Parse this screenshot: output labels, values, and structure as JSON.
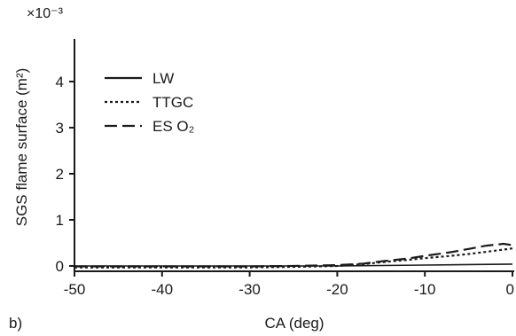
{
  "chart_data": {
    "type": "line",
    "panel_label": "b)",
    "xlabel": "CA (deg)",
    "ylabel": "SGS flame surface (m²)",
    "y_multiplier_label": "×10⁻³",
    "xlim": [
      -50,
      0
    ],
    "ylim": [
      0,
      5
    ],
    "x_ticks": [
      -50,
      -40,
      -30,
      -20,
      -10,
      0
    ],
    "y_ticks": [
      0,
      1,
      2,
      3,
      4
    ],
    "legend_position": "top-left",
    "grid": false,
    "series": [
      {
        "name": "LW",
        "style": "solid",
        "x": [
          -50,
          -40,
          -30,
          -20,
          -15,
          -10,
          -5,
          0
        ],
        "y": [
          0.0,
          0.0,
          0.0,
          0.0,
          0.01,
          0.02,
          0.03,
          0.04
        ]
      },
      {
        "name": "TTGC",
        "style": "dotted",
        "x": [
          -50,
          -40,
          -30,
          -25,
          -20,
          -17,
          -15,
          -12,
          -10,
          -7,
          -5,
          -2,
          0
        ],
        "y": [
          -0.03,
          -0.03,
          -0.03,
          -0.02,
          0.0,
          0.04,
          0.08,
          0.13,
          0.17,
          0.22,
          0.26,
          0.33,
          0.38
        ]
      },
      {
        "name": "ES O₂",
        "style": "dashed",
        "x": [
          -50,
          -40,
          -30,
          -25,
          -20,
          -17,
          -15,
          -12,
          -10,
          -7,
          -5,
          -3,
          -1,
          0
        ],
        "y": [
          -0.01,
          -0.01,
          -0.01,
          0.0,
          0.02,
          0.05,
          0.1,
          0.16,
          0.22,
          0.3,
          0.37,
          0.44,
          0.48,
          0.45
        ]
      }
    ]
  }
}
